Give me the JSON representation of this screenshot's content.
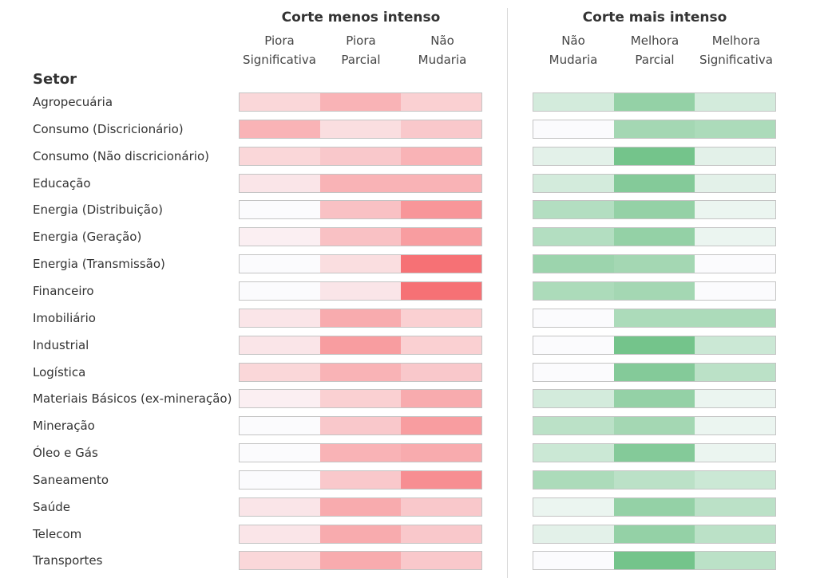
{
  "chart_data": {
    "type": "heatmap",
    "title": "",
    "row_header": "Setor",
    "groups": [
      {
        "title": "Corte menos intenso",
        "palette": "red",
        "columns": [
          {
            "line1": "Piora",
            "line2": "Significativa"
          },
          {
            "line1": "Piora",
            "line2": "Parcial"
          },
          {
            "line1": "Não",
            "line2": "Mudaria"
          }
        ]
      },
      {
        "title": "Corte mais intenso",
        "palette": "green",
        "columns": [
          {
            "line1": "Não",
            "line2": "Mudaria"
          },
          {
            "line1": "Melhora",
            "line2": "Parcial"
          },
          {
            "line1": "Melhora",
            "line2": "Significativa"
          }
        ]
      }
    ],
    "rows": [
      {
        "setor": "Agropecuária",
        "red": [
          0.25,
          0.5,
          0.3
        ],
        "green": [
          0.25,
          0.65,
          0.25
        ]
      },
      {
        "setor": "Consumo (Discricionário)",
        "red": [
          0.5,
          0.2,
          0.35
        ],
        "green": [
          0.0,
          0.55,
          0.5
        ]
      },
      {
        "setor": "Consumo (Não discricionário)",
        "red": [
          0.25,
          0.35,
          0.5
        ],
        "green": [
          0.15,
          0.85,
          0.15
        ]
      },
      {
        "setor": "Educação",
        "red": [
          0.15,
          0.5,
          0.5
        ],
        "green": [
          0.25,
          0.75,
          0.15
        ]
      },
      {
        "setor": "Energia (Distribuição)",
        "red": [
          0.0,
          0.4,
          0.7
        ],
        "green": [
          0.45,
          0.65,
          0.1
        ]
      },
      {
        "setor": "Energia (Geração)",
        "red": [
          0.08,
          0.4,
          0.65
        ],
        "green": [
          0.45,
          0.65,
          0.1
        ]
      },
      {
        "setor": "Energia (Transmissão)",
        "red": [
          0.0,
          0.2,
          0.95
        ],
        "green": [
          0.6,
          0.55,
          0.0
        ]
      },
      {
        "setor": "Financeiro",
        "red": [
          0.0,
          0.15,
          0.95
        ],
        "green": [
          0.5,
          0.55,
          0.0
        ]
      },
      {
        "setor": "Imobiliário",
        "red": [
          0.15,
          0.55,
          0.3
        ],
        "green": [
          0.0,
          0.5,
          0.5
        ]
      },
      {
        "setor": "Industrial",
        "red": [
          0.15,
          0.65,
          0.3
        ],
        "green": [
          0.0,
          0.85,
          0.3
        ]
      },
      {
        "setor": "Logística",
        "red": [
          0.25,
          0.5,
          0.35
        ],
        "green": [
          0.0,
          0.75,
          0.4
        ]
      },
      {
        "setor": "Materiais Básicos (ex-mineração)",
        "red": [
          0.08,
          0.3,
          0.55
        ],
        "green": [
          0.25,
          0.65,
          0.1
        ]
      },
      {
        "setor": "Mineração",
        "red": [
          0.0,
          0.35,
          0.65
        ],
        "green": [
          0.4,
          0.55,
          0.1
        ]
      },
      {
        "setor": "Óleo e Gás",
        "red": [
          0.0,
          0.5,
          0.55
        ],
        "green": [
          0.3,
          0.75,
          0.1
        ]
      },
      {
        "setor": "Saneamento",
        "red": [
          0.0,
          0.35,
          0.75
        ],
        "green": [
          0.5,
          0.4,
          0.3
        ]
      },
      {
        "setor": "Saúde",
        "red": [
          0.15,
          0.55,
          0.35
        ],
        "green": [
          0.1,
          0.65,
          0.4
        ]
      },
      {
        "setor": "Telecom",
        "red": [
          0.15,
          0.55,
          0.35
        ],
        "green": [
          0.15,
          0.65,
          0.4
        ]
      },
      {
        "setor": "Transportes",
        "red": [
          0.25,
          0.55,
          0.35
        ],
        "green": [
          0.0,
          0.85,
          0.4
        ]
      }
    ],
    "colors": {
      "red_low": "#fbfbfd",
      "red_high": "#f66a6e",
      "green_low": "#fbfbfd",
      "green_high": "#5cba77"
    },
    "value_scale": "relative intensity 0-1 (estimated from shading)"
  }
}
